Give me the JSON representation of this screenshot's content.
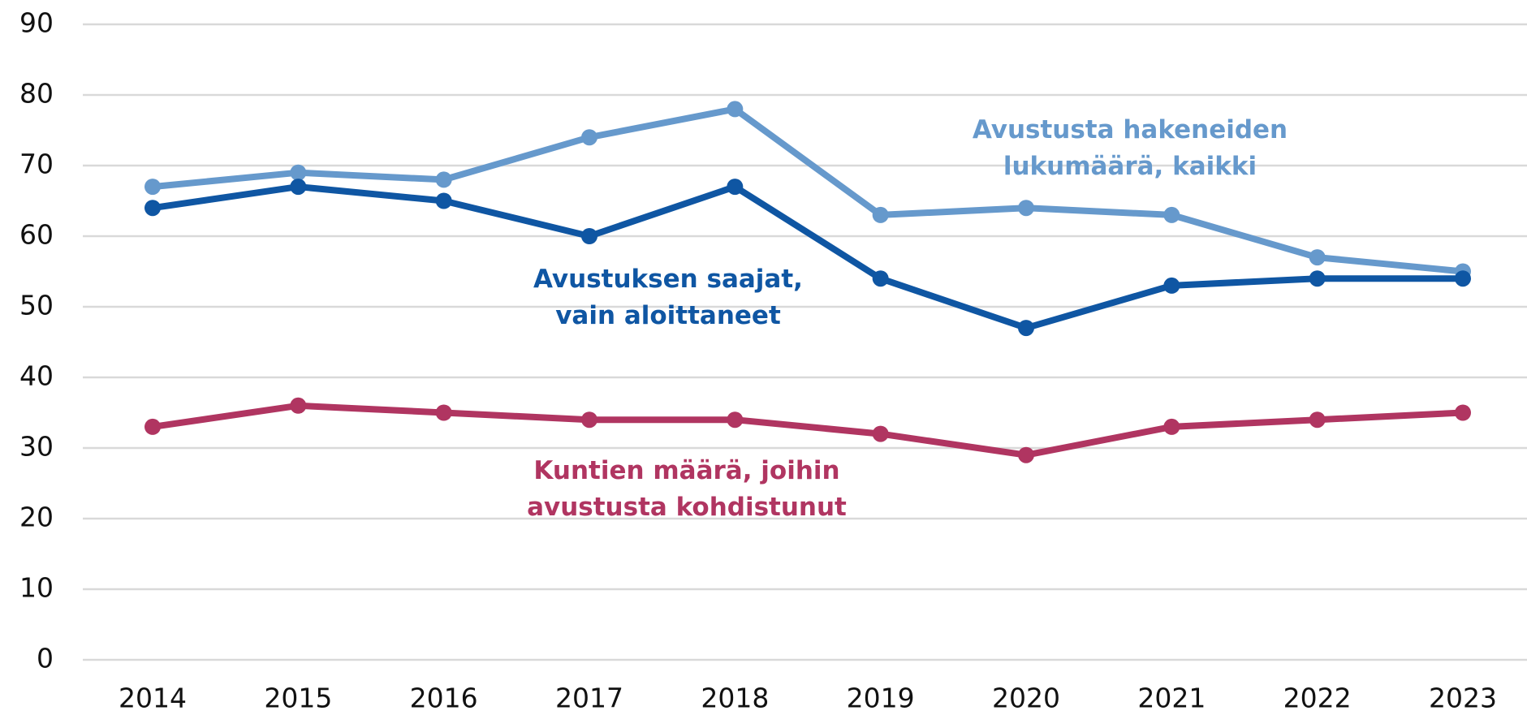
{
  "chart_data": {
    "type": "line",
    "x": [
      2014,
      2015,
      2016,
      2017,
      2018,
      2019,
      2020,
      2021,
      2022,
      2023
    ],
    "series": [
      {
        "name": "Avustusta hakeneiden lukumäärä, kaikki",
        "color": "#6699cc",
        "values": [
          67,
          69,
          68,
          74,
          78,
          63,
          64,
          63,
          57,
          55
        ]
      },
      {
        "name": "Avustuksen saajat, vain aloittaneet",
        "color": "#0f56a3",
        "values": [
          64,
          67,
          65,
          60,
          67,
          54,
          47,
          53,
          54,
          54
        ]
      },
      {
        "name": "Kuntien määrä, joihin avustusta kohdistunut",
        "color": "#b03561",
        "values": [
          33,
          36,
          35,
          34,
          34,
          32,
          29,
          33,
          34,
          35
        ]
      }
    ],
    "ylim": [
      0,
      90
    ],
    "yticks": [
      0,
      10,
      20,
      30,
      40,
      50,
      60,
      70,
      80,
      90
    ],
    "grid": true
  }
}
